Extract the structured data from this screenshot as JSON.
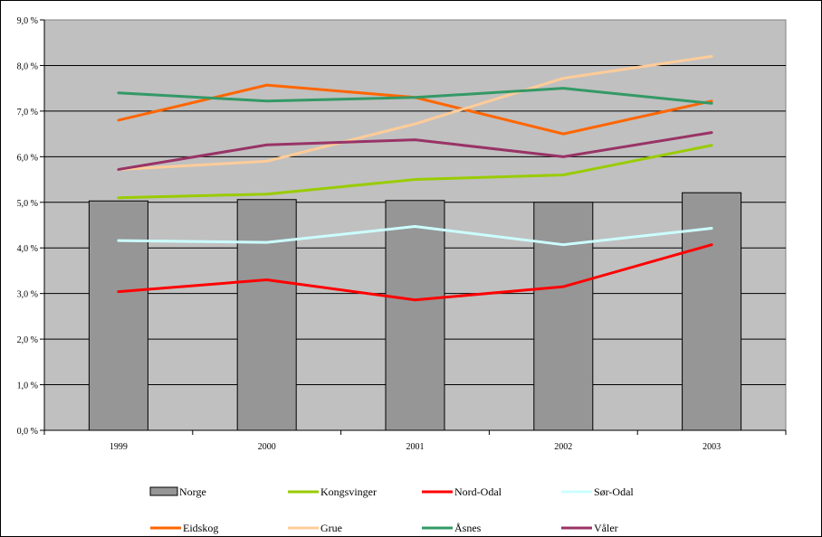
{
  "chart_data": {
    "type": "bar",
    "categories": [
      "1999",
      "2000",
      "2001",
      "2002",
      "2003"
    ],
    "ylim": [
      0,
      9
    ],
    "y_ticks": [
      "0,0 %",
      "1,0 %",
      "2,0 %",
      "3,0 %",
      "4,0 %",
      "5,0 %",
      "6,0 %",
      "7,0 %",
      "8,0 %",
      "9,0 %"
    ],
    "grid": true,
    "legend_position": "bottom",
    "bar_series": {
      "name": "Norge",
      "color": "#969696",
      "values": [
        5.03,
        5.06,
        5.04,
        5.0,
        5.21
      ]
    },
    "line_series": [
      {
        "name": "Kongsvinger",
        "color": "#99cc00",
        "values": [
          5.1,
          5.18,
          5.5,
          5.6,
          6.25
        ]
      },
      {
        "name": "Nord-Odal",
        "color": "#ff0000",
        "values": [
          3.04,
          3.3,
          2.86,
          3.15,
          4.07
        ]
      },
      {
        "name": "Sør-Odal",
        "color": "#ccffff",
        "values": [
          4.16,
          4.12,
          4.47,
          4.07,
          4.43
        ]
      },
      {
        "name": "Eidskog",
        "color": "#ff6600",
        "values": [
          6.8,
          7.57,
          7.3,
          6.5,
          7.22
        ]
      },
      {
        "name": "Grue",
        "color": "#ffcc99",
        "values": [
          5.72,
          5.9,
          6.72,
          7.72,
          8.2
        ]
      },
      {
        "name": "Åsnes",
        "color": "#339966",
        "values": [
          7.4,
          7.22,
          7.3,
          7.5,
          7.17
        ]
      },
      {
        "name": "Våler",
        "color": "#993366",
        "values": [
          5.72,
          6.26,
          6.37,
          6.0,
          6.53
        ]
      }
    ]
  }
}
